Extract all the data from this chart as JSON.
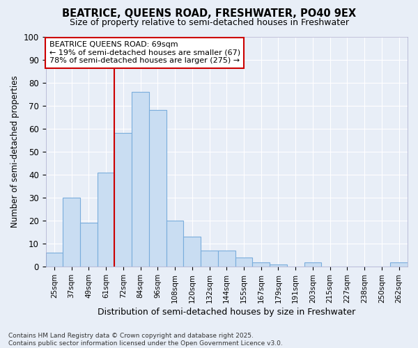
{
  "title1": "BEATRICE, QUEENS ROAD, FRESHWATER, PO40 9EX",
  "title2": "Size of property relative to semi-detached houses in Freshwater",
  "xlabel": "Distribution of semi-detached houses by size in Freshwater",
  "ylabel": "Number of semi-detached properties",
  "categories": [
    "25sqm",
    "37sqm",
    "49sqm",
    "61sqm",
    "72sqm",
    "84sqm",
    "96sqm",
    "108sqm",
    "120sqm",
    "132sqm",
    "144sqm",
    "155sqm",
    "167sqm",
    "179sqm",
    "191sqm",
    "203sqm",
    "215sqm",
    "227sqm",
    "238sqm",
    "250sqm",
    "262sqm"
  ],
  "values": [
    6,
    30,
    19,
    41,
    58,
    76,
    68,
    20,
    13,
    7,
    7,
    4,
    2,
    1,
    0,
    2,
    0,
    0,
    0,
    0,
    2
  ],
  "bar_color": "#c9ddf2",
  "bar_edge_color": "#7aaddc",
  "background_color": "#e8eef7",
  "grid_color": "#ffffff",
  "vline_x": 4.0,
  "vline_color": "#cc0000",
  "annotation_line1": "BEATRICE QUEENS ROAD: 69sqm",
  "annotation_line2": "← 19% of semi-detached houses are smaller (67)",
  "annotation_line3": "78% of semi-detached houses are larger (275) →",
  "annotation_box_color": "#ffffff",
  "annotation_box_edge": "#cc0000",
  "ylim": [
    0,
    100
  ],
  "yticks": [
    0,
    10,
    20,
    30,
    40,
    50,
    60,
    70,
    80,
    90,
    100
  ],
  "footnote": "Contains HM Land Registry data © Crown copyright and database right 2025.\nContains public sector information licensed under the Open Government Licence v3.0."
}
